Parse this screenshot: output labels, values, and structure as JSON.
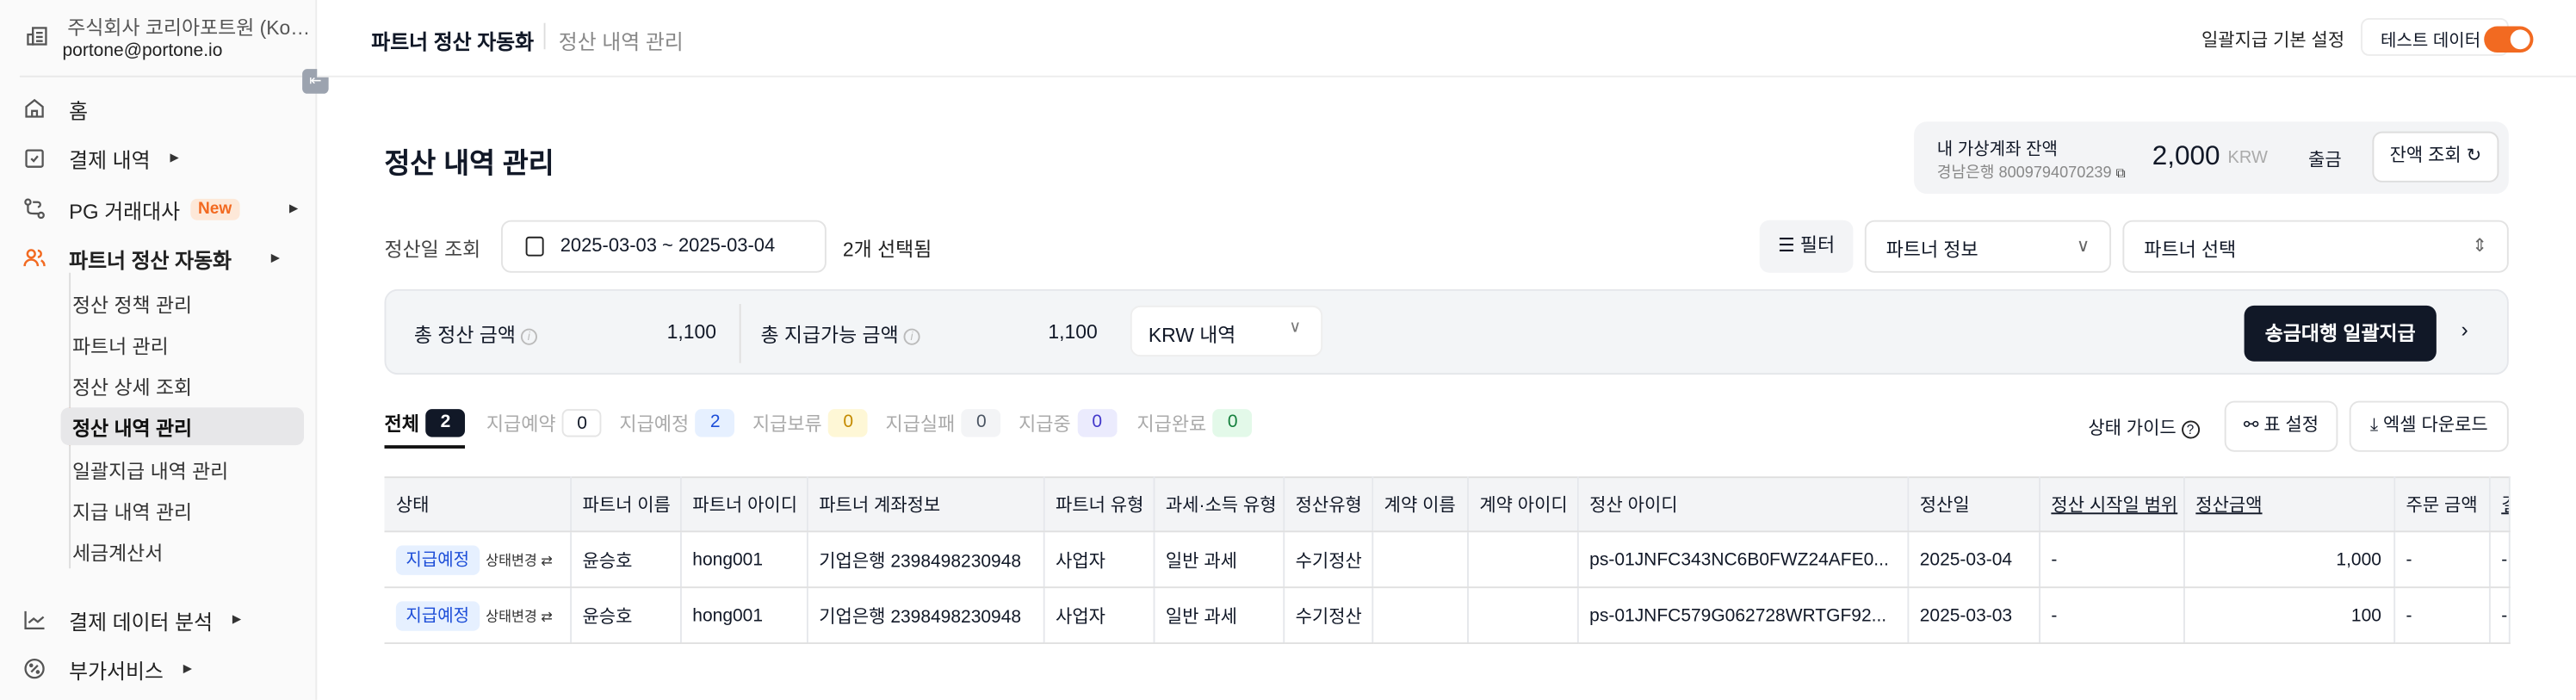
{
  "sidebar": {
    "org_name": "주식회사 코리아포트원 (Kore...",
    "email": "portone@portone.io",
    "menu": [
      {
        "label": "홈",
        "icon": "home-icon"
      },
      {
        "label": "결제 내역",
        "icon": "clipboard-check-icon"
      },
      {
        "label": "PG 거래대사",
        "icon": "route-icon",
        "badge": "New"
      },
      {
        "label": "파트너 정산 자동화",
        "icon": "users-icon",
        "active": true
      }
    ],
    "submenu": [
      "정산 정책 관리",
      "파트너 관리",
      "정산 상세 조회",
      "정산 내역 관리",
      "일괄지급 내역 관리",
      "지급 내역 관리",
      "세금계산서"
    ],
    "bottom_menu": [
      {
        "label": "결제 데이터 분석",
        "icon": "chart-line-icon"
      },
      {
        "label": "부가서비스",
        "icon": "badge-percent-icon"
      }
    ]
  },
  "header": {
    "breadcrumb_1": "파트너 정산 자동화",
    "breadcrumb_2": "정산 내역 관리",
    "batch_settings": "일괄지급 기본 설정",
    "test_data_label": "테스트 데이터",
    "test_data_on": true
  },
  "page": {
    "title": "정산 내역 관리"
  },
  "balance": {
    "label": "내 가상계좌 잔액",
    "account": "경남은행 8009794070239",
    "amount": "2,000",
    "currency": "KRW",
    "withdraw": "출금",
    "refresh": "잔액 조회"
  },
  "filters": {
    "date_label": "정산일 조회",
    "date_range": "2025-03-03 ~ 2025-03-04",
    "selected": "2개 선택됨",
    "filter_button": "필터",
    "partner_info": "파트너 정보",
    "partner_select": "파트너 선택"
  },
  "summary": {
    "total_settle_label": "총 정산 금액",
    "total_settle": "1,100",
    "total_payable_label": "총 지급가능 금액",
    "total_payable": "1,100",
    "currency_select": "KRW 내역",
    "pay_all": "송금대행 일괄지급"
  },
  "tabs": [
    {
      "label": "전체",
      "count": "2",
      "bg": "#111827",
      "fg": "#ffffff"
    },
    {
      "label": "지급예약",
      "count": "0",
      "bg": "#ffffff",
      "fg": "#111827"
    },
    {
      "label": "지급예정",
      "count": "2",
      "bg": "#e6f0ff",
      "fg": "#1d4ed8"
    },
    {
      "label": "지급보류",
      "count": "0",
      "bg": "#fef7d6",
      "fg": "#c48a00"
    },
    {
      "label": "지급실패",
      "count": "0",
      "bg": "#f3f4f6",
      "fg": "#4b5563"
    },
    {
      "label": "지급중",
      "count": "0",
      "bg": "#ebebfd",
      "fg": "#4338ca"
    },
    {
      "label": "지급완료",
      "count": "0",
      "bg": "#e3f9e9",
      "fg": "#15803d"
    }
  ],
  "toolbar": {
    "status_guide": "상태 가이드",
    "table_settings": "표 설정",
    "excel_download": "엑셀 다운로드"
  },
  "table": {
    "columns": [
      "상태",
      "파트너 이름",
      "파트너 아이디",
      "파트너 계좌정보",
      "파트너 유형",
      "과세·소득 유형",
      "정산유형",
      "계약 이름",
      "계약 아이디",
      "정산 아이디",
      "정산일",
      "정산 시작일 범위",
      "정산금액",
      "주문 금액",
      "결"
    ],
    "rows": [
      {
        "status": "지급예정",
        "change": "상태변경",
        "cells": [
          "윤승호",
          "hong001",
          "기업은행 2398498230948",
          "사업자",
          "일반 과세",
          "수기정산",
          "",
          "",
          "ps-01JNFC343NC6B0FWZ24AFE0...",
          "2025-03-04",
          "-",
          "1,000",
          "-",
          "-"
        ]
      },
      {
        "status": "지급예정",
        "change": "상태변경",
        "cells": [
          "윤승호",
          "hong001",
          "기업은행 2398498230948",
          "사업자",
          "일반 과세",
          "수기정산",
          "",
          "",
          "ps-01JNFC579G062728WRTGF92...",
          "2025-03-03",
          "-",
          "100",
          "-",
          "-"
        ]
      }
    ]
  },
  "colors": {
    "accent": "#f26a21",
    "dark": "#111827"
  }
}
